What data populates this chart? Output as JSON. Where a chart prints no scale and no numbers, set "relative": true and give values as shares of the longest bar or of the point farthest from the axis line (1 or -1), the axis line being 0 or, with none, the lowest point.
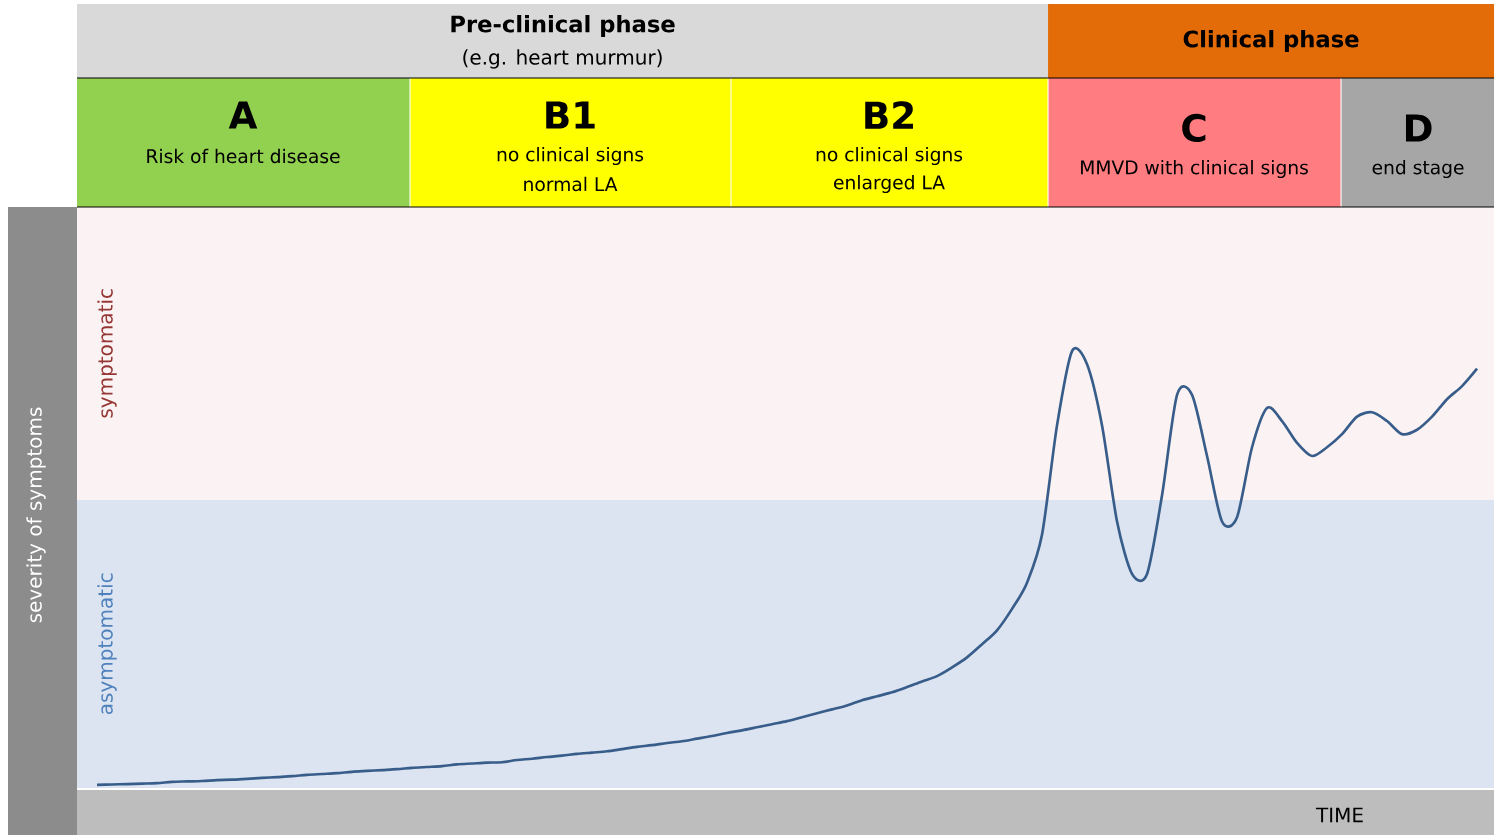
{
  "chart_data": {
    "type": "line",
    "relative": true,
    "xlabel": "TIME",
    "ylabel": "severity of symptoms",
    "categories": [
      null,
      null,
      null,
      null,
      null,
      null,
      null,
      null,
      null,
      null,
      null,
      null,
      null,
      null,
      null,
      null,
      null,
      null,
      null,
      null,
      null,
      null,
      null,
      null,
      null,
      null,
      null,
      null,
      null,
      null,
      null,
      null,
      null,
      null,
      null,
      null,
      null,
      null,
      null,
      null,
      null,
      null,
      null,
      null,
      null,
      null,
      null,
      null,
      null,
      null,
      null,
      null,
      null,
      null,
      null,
      null,
      null,
      null,
      null,
      null,
      null,
      null,
      null,
      null,
      null,
      null,
      null,
      null,
      null,
      null,
      null,
      null,
      null,
      null,
      null,
      null,
      null,
      null,
      null,
      null,
      null,
      null,
      null,
      null,
      null,
      null,
      null,
      null,
      null,
      null,
      null,
      null,
      null
    ],
    "series": [
      {
        "color": "#385d8a",
        "values": [
          0.007,
          0.008,
          0.009,
          0.01,
          0.011,
          0.014,
          0.015,
          0.016,
          0.018,
          0.019,
          0.021,
          0.023,
          0.025,
          0.027,
          0.03,
          0.032,
          0.034,
          0.037,
          0.039,
          0.041,
          0.043,
          0.046,
          0.048,
          0.05,
          0.054,
          0.056,
          0.058,
          0.059,
          0.064,
          0.067,
          0.071,
          0.074,
          0.078,
          0.081,
          0.084,
          0.089,
          0.094,
          0.098,
          0.103,
          0.107,
          0.113,
          0.119,
          0.126,
          0.132,
          0.139,
          0.146,
          0.153,
          0.162,
          0.171,
          0.18,
          0.189,
          0.201,
          0.21,
          0.219,
          0.231,
          0.244,
          0.256,
          0.276,
          0.299,
          0.329,
          0.361,
          0.41,
          0.47,
          0.58,
          0.83,
          1,
          0.97,
          0.83,
          0.61,
          0.49,
          0.49,
          0.67,
          0.9,
          0.9,
          0.76,
          0.61,
          0.62,
          0.78,
          0.87,
          0.84,
          0.79,
          0.76,
          0.78,
          0.81,
          0.85,
          0.86,
          0.84,
          0.81,
          0.82,
          0.85,
          0.89,
          0.92,
          0.96
        ]
      }
    ],
    "bands": [
      {
        "axis": "y",
        "from": 0,
        "to": 0.66,
        "label": "asymptomatic",
        "color": "#dbe4f0"
      },
      {
        "axis": "y",
        "from": 0.66,
        "to": 1.33,
        "label": "symptomatic",
        "color": "#fbf3f3"
      }
    ],
    "annotations": [
      "Pre-clinical phase",
      "(e.g. heart murmur)",
      "Clinical phase",
      "A",
      "Risk of heart disease",
      "B1",
      "no clinical signs",
      "normal LA",
      "B2",
      "no clinical signs",
      "enlarged LA",
      "C",
      "MMVD with clinical signs",
      "D",
      "end stage"
    ]
  }
}
